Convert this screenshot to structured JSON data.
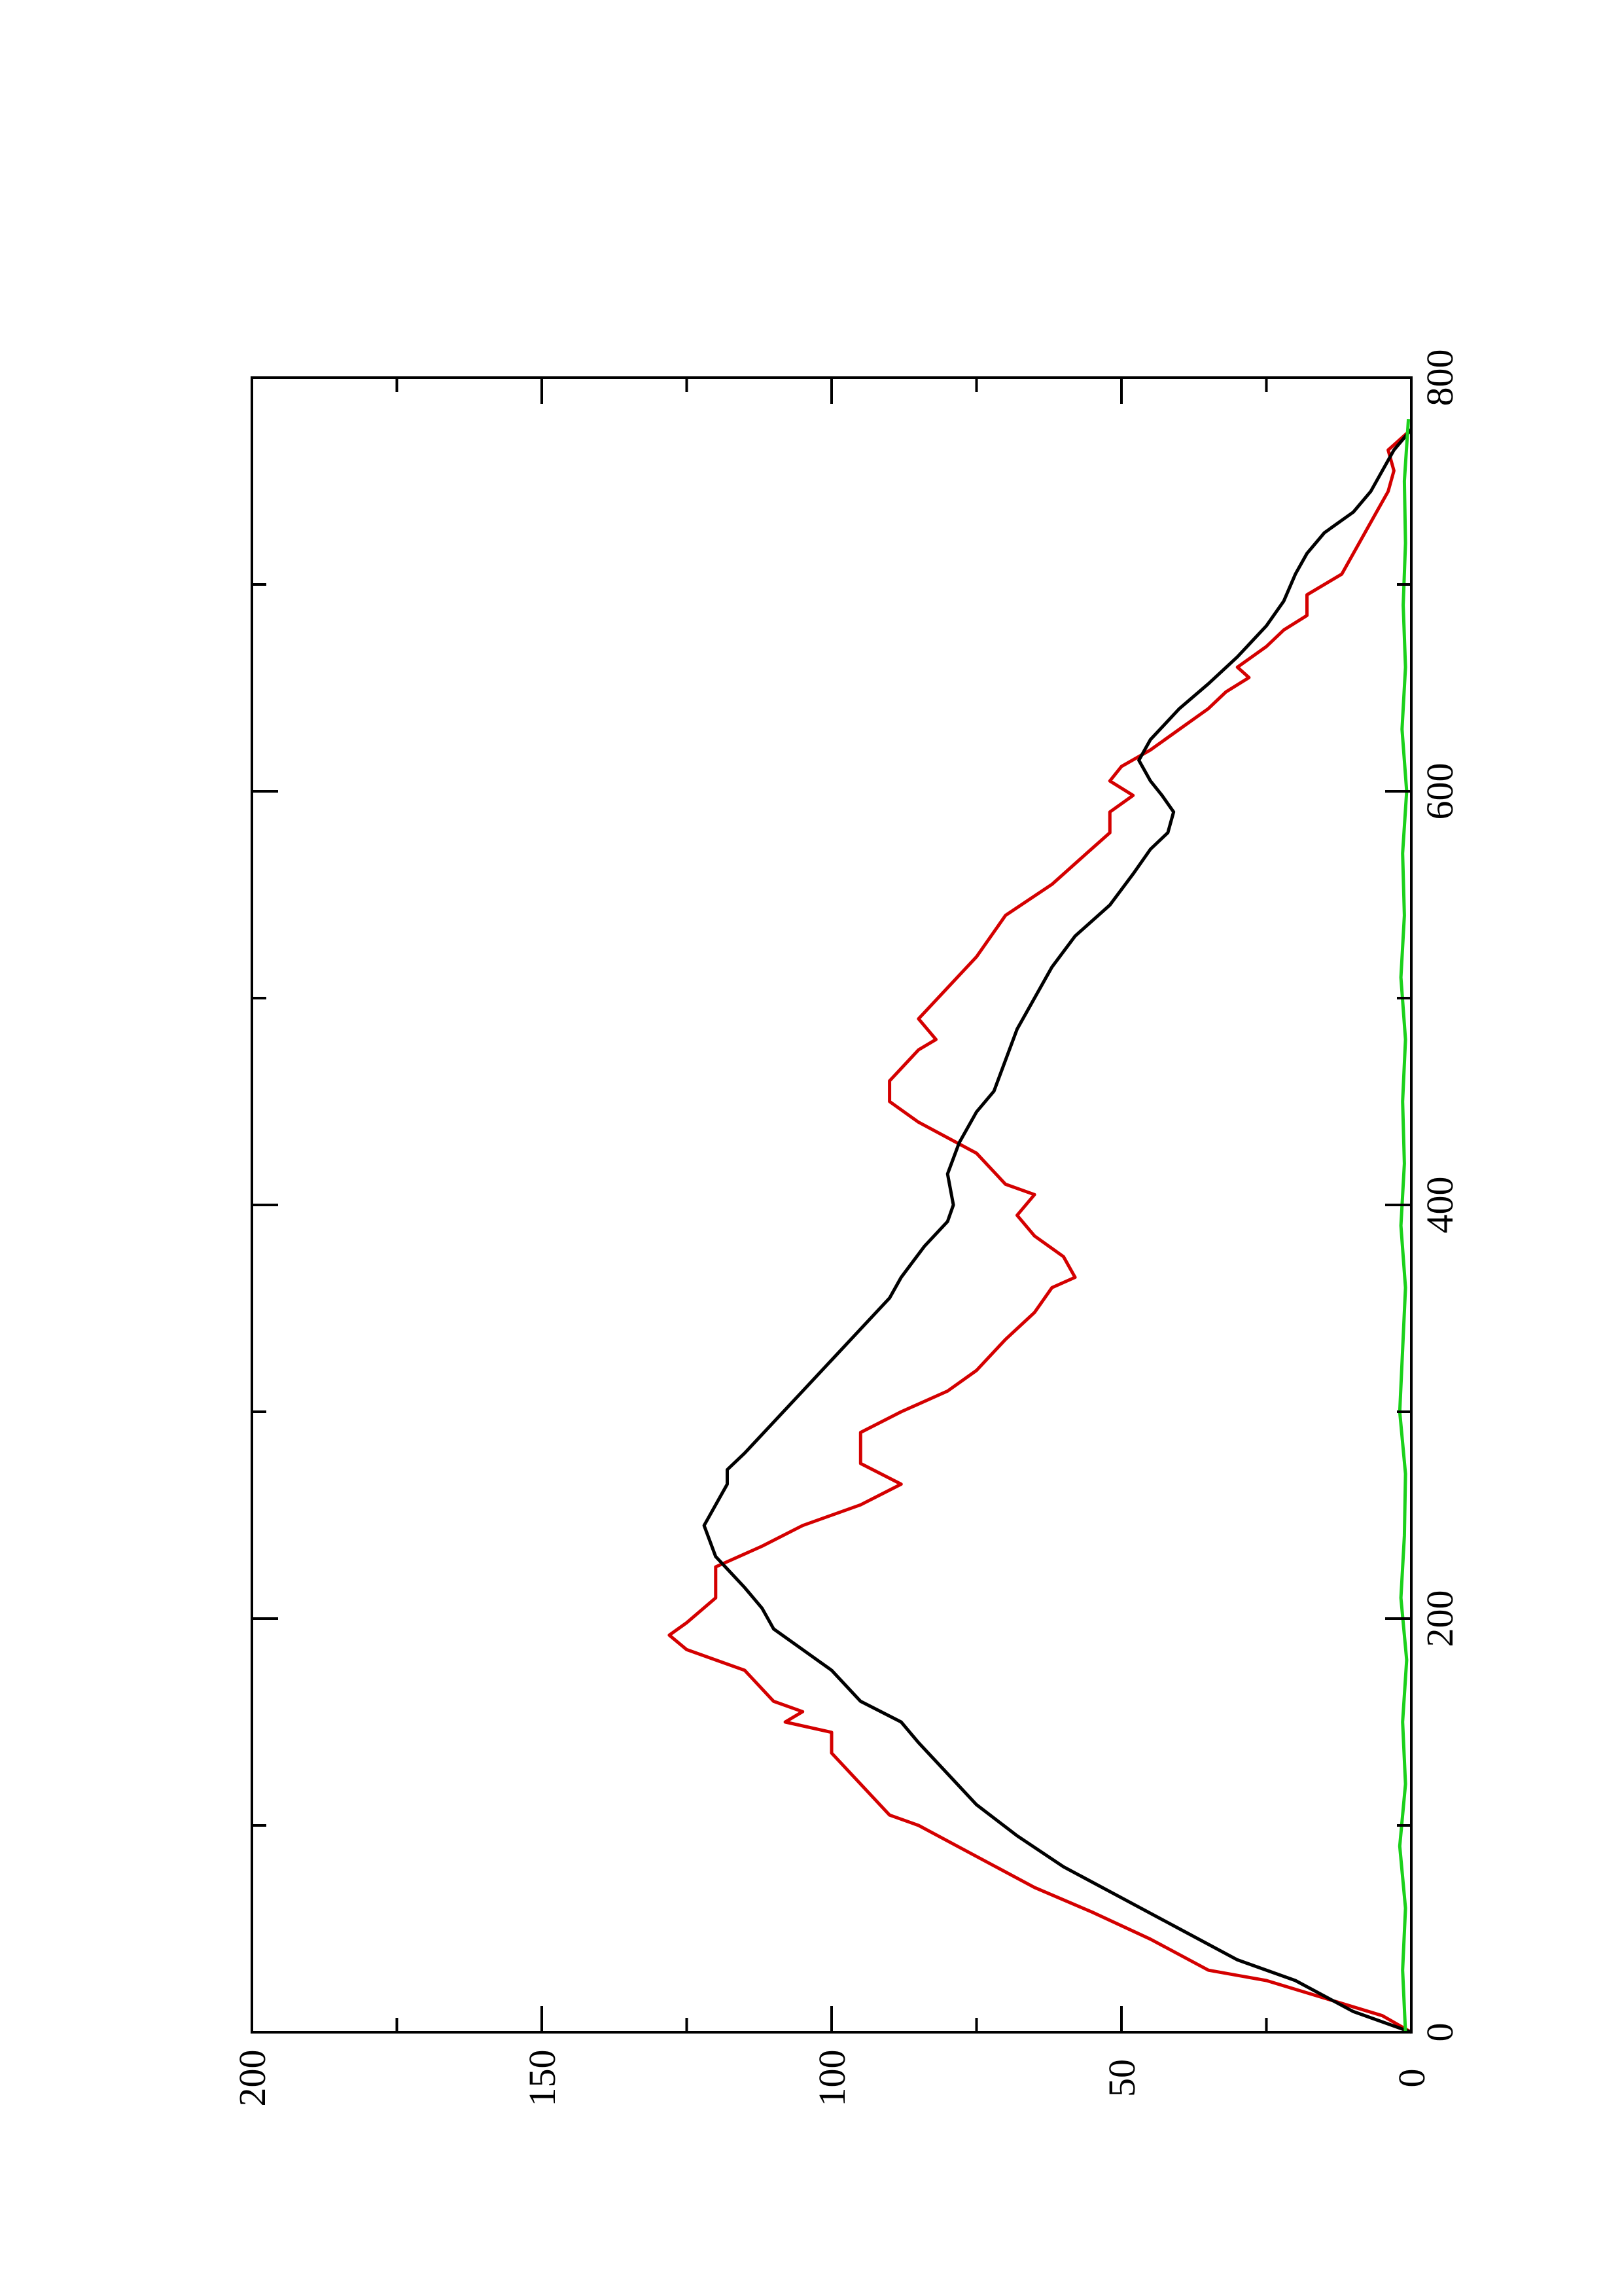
{
  "chart_data": {
    "type": "line",
    "orientation": "rotated-90-ccw",
    "xlim": [
      0,
      800
    ],
    "ylim": [
      0,
      200
    ],
    "x_ticks": [
      0,
      200,
      400,
      600,
      800
    ],
    "x_minor_ticks": [
      100,
      300,
      500,
      700
    ],
    "y_ticks": [
      0,
      50,
      100,
      150,
      200
    ],
    "y_minor_ticks": [
      25,
      75,
      125,
      175
    ],
    "x_tick_labels": [
      "0",
      "200",
      "400",
      "600",
      "800"
    ],
    "y_tick_labels": [
      "0",
      "50",
      "100",
      "150",
      "200"
    ],
    "grid": false,
    "legend": "none",
    "series": [
      {
        "color": "#d40000",
        "x": [
          0,
          8,
          25,
          30,
          45,
          58,
          70,
          85,
          100,
          105,
          120,
          135,
          145,
          150,
          155,
          160,
          175,
          185,
          192,
          198,
          210,
          225,
          235,
          245,
          255,
          265,
          275,
          290,
          300,
          310,
          320,
          335,
          348,
          360,
          365,
          375,
          385,
          395,
          405,
          410,
          425,
          440,
          450,
          460,
          475,
          480,
          490,
          505,
          520,
          540,
          555,
          570,
          580,
          590,
          598,
          605,
          612,
          620,
          630,
          640,
          648,
          655,
          660,
          670,
          678,
          685,
          695,
          705,
          715,
          725,
          735,
          745,
          755,
          765,
          775
        ],
        "y": [
          0,
          5,
          25,
          35,
          45,
          55,
          65,
          75,
          85,
          90,
          95,
          100,
          100,
          108,
          105,
          110,
          115,
          125,
          128,
          125,
          120,
          120,
          112,
          105,
          95,
          88,
          95,
          95,
          88,
          80,
          75,
          70,
          65,
          62,
          58,
          60,
          65,
          68,
          65,
          70,
          75,
          85,
          90,
          90,
          85,
          82,
          85,
          80,
          75,
          70,
          62,
          56,
          52,
          52,
          48,
          52,
          50,
          45,
          40,
          35,
          32,
          28,
          30,
          25,
          22,
          18,
          18,
          12,
          10,
          8,
          6,
          4,
          3,
          4,
          0
        ]
      },
      {
        "color": "#000000",
        "x": [
          0,
          10,
          25,
          35,
          50,
          65,
          80,
          95,
          110,
          125,
          140,
          150,
          160,
          175,
          185,
          195,
          205,
          215,
          230,
          245,
          255,
          265,
          272,
          280,
          295,
          310,
          325,
          340,
          355,
          365,
          380,
          392,
          400,
          415,
          430,
          445,
          455,
          470,
          485,
          500,
          515,
          530,
          545,
          560,
          572,
          580,
          590,
          598,
          605,
          615,
          625,
          640,
          652,
          665,
          680,
          692,
          705,
          715,
          725,
          735,
          745,
          755,
          765,
          775
        ],
        "y": [
          0,
          10,
          20,
          30,
          40,
          50,
          60,
          68,
          75,
          80,
          85,
          88,
          95,
          100,
          105,
          110,
          112,
          115,
          120,
          122,
          120,
          118,
          118,
          115,
          110,
          105,
          100,
          95,
          90,
          88,
          84,
          80,
          79,
          80,
          78,
          75,
          72,
          70,
          68,
          65,
          62,
          58,
          52,
          48,
          45,
          42,
          41,
          43,
          45,
          47,
          45,
          40,
          35,
          30,
          25,
          22,
          20,
          18,
          15,
          10,
          7,
          5,
          3,
          0
        ]
      },
      {
        "color": "#1bd11b",
        "x": [
          0,
          30,
          60,
          90,
          120,
          150,
          180,
          210,
          240,
          270,
          300,
          330,
          360,
          390,
          420,
          450,
          480,
          510,
          540,
          570,
          600,
          630,
          660,
          690,
          720,
          750,
          780
        ],
        "y": [
          1.0,
          1.5,
          1.0,
          2.0,
          1.0,
          1.5,
          0.8,
          1.8,
          1.2,
          1.0,
          2.0,
          1.5,
          1.0,
          1.8,
          1.2,
          1.5,
          1.0,
          1.8,
          1.2,
          1.5,
          0.8,
          1.6,
          1.0,
          1.4,
          1.0,
          1.2,
          0.5
        ]
      }
    ]
  }
}
